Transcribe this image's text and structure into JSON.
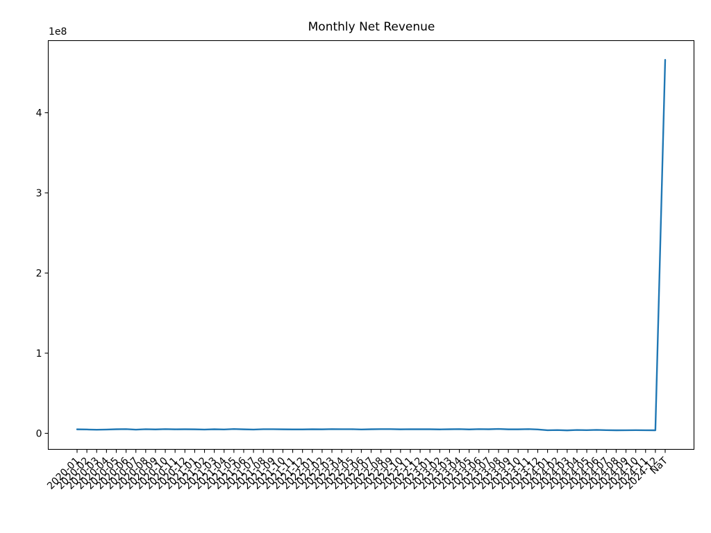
{
  "chart_data": {
    "type": "line",
    "title": "Monthly Net Revenue",
    "xlabel": "",
    "ylabel": "",
    "y_offset_text": "1e8",
    "y_scale": 100000000,
    "ylim": [
      -20000000,
      490000000
    ],
    "yticks": [
      0,
      100000000,
      200000000,
      300000000,
      400000000
    ],
    "ytick_labels": [
      "0",
      "1",
      "2",
      "3",
      "4"
    ],
    "grid": false,
    "x": [
      "2020-01",
      "2020-02",
      "2020-03",
      "2020-04",
      "2020-05",
      "2020-06",
      "2020-07",
      "2020-08",
      "2020-09",
      "2020-10",
      "2020-11",
      "2020-12",
      "2021-01",
      "2021-02",
      "2021-03",
      "2021-04",
      "2021-05",
      "2021-06",
      "2021-07",
      "2021-08",
      "2021-09",
      "2021-10",
      "2021-11",
      "2021-12",
      "2022-01",
      "2022-02",
      "2022-03",
      "2022-04",
      "2022-05",
      "2022-06",
      "2022-07",
      "2022-08",
      "2022-09",
      "2022-10",
      "2022-11",
      "2022-12",
      "2023-01",
      "2023-02",
      "2023-03",
      "2023-04",
      "2023-05",
      "2023-06",
      "2023-07",
      "2023-08",
      "2023-09",
      "2023-10",
      "2023-11",
      "2023-12",
      "2024-01",
      "2024-02",
      "2024-03",
      "2024-04",
      "2024-05",
      "2024-06",
      "2024-07",
      "2024-08",
      "2024-09",
      "2024-10",
      "2024-11",
      "2024-12",
      "NaT"
    ],
    "series": [
      {
        "color": "#1f77b4",
        "values": [
          5000000,
          4800000,
          4500000,
          4700000,
          5100000,
          5300000,
          4600000,
          5200000,
          4900000,
          5300000,
          5000000,
          5100000,
          5000000,
          4700000,
          5100000,
          4800000,
          5400000,
          5000000,
          4700000,
          5200000,
          5200000,
          5000000,
          4900000,
          4900000,
          5100000,
          5000000,
          5300000,
          5200000,
          5200000,
          4800000,
          5100000,
          5300000,
          5300000,
          5000000,
          5200000,
          5100000,
          5100000,
          4900000,
          5100000,
          5300000,
          4900000,
          5300000,
          5100000,
          5500000,
          5000000,
          5000000,
          5300000,
          4800000,
          3900000,
          4100000,
          3700000,
          4200000,
          4000000,
          4300000,
          4000000,
          3800000,
          3900000,
          4000000,
          3900000,
          3800000,
          466000000
        ]
      }
    ]
  }
}
